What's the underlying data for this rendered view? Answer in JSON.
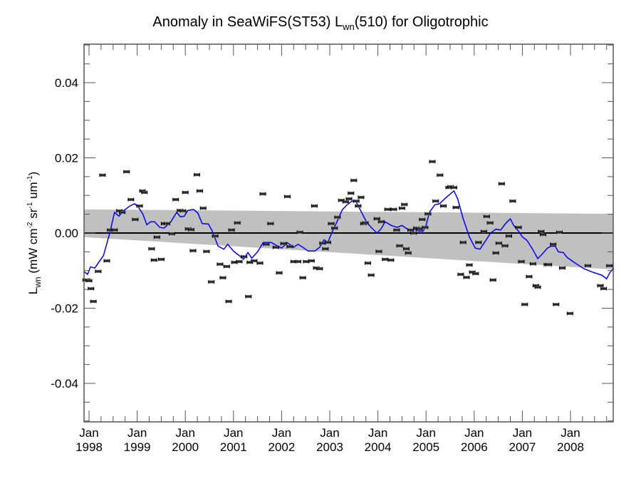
{
  "chart_data": {
    "type": "scatter",
    "title": {
      "prefix": "Anomaly in SeaWiFS(ST53) L",
      "sub": "wn",
      "suffix": "(510) for Oligotrophic"
    },
    "xlabel": "",
    "ylabel": {
      "prefix": "L",
      "sub": "wn",
      "units_parts": [
        " (mW cm",
        "-2",
        " sr",
        "-1",
        " um",
        "-1",
        ")"
      ]
    },
    "xlim": [
      1997.9,
      2008.9
    ],
    "ylim": [
      -0.05,
      0.05
    ],
    "yticks": [
      -0.04,
      -0.02,
      0.0,
      0.02,
      0.04
    ],
    "ytick_labels": [
      "-0.04",
      "-0.02",
      "0.00",
      "0.02",
      "0.04"
    ],
    "yminor_step": 0.005,
    "xticks": [
      1998,
      1999,
      2000,
      2001,
      2002,
      2003,
      2004,
      2005,
      2006,
      2007,
      2008
    ],
    "xtick_labels": [
      [
        "Jan",
        "1998"
      ],
      [
        "Jan",
        "1999"
      ],
      [
        "Jan",
        "2000"
      ],
      [
        "Jan",
        "2001"
      ],
      [
        "Jan",
        "2002"
      ],
      [
        "Jan",
        "2003"
      ],
      [
        "Jan",
        "2004"
      ],
      [
        "Jan",
        "2005"
      ],
      [
        "Jan",
        "2006"
      ],
      [
        "Jan",
        "2007"
      ],
      [
        "Jan",
        "2008"
      ]
    ],
    "xminor_per_major": 4,
    "grid": false,
    "zero_line": 0.0,
    "confidence_band": {
      "start": {
        "x": 1997.9,
        "upper": 0.0063,
        "lower": -0.0011
      },
      "end": {
        "x": 2008.9,
        "upper": 0.0051,
        "lower": -0.0097
      },
      "color": "#c0c0c0"
    },
    "series": [
      {
        "name": "monthly anomaly",
        "type": "scatter-errorbar",
        "color": "#000000",
        "points": [
          [
            1997.93,
            -0.0125
          ],
          [
            1997.96,
            -0.0125
          ],
          [
            1998.0,
            -0.0127
          ],
          [
            1998.04,
            -0.0148
          ],
          [
            1998.09,
            -0.0182
          ],
          [
            1998.19,
            -0.0102
          ],
          [
            1998.28,
            0.0154
          ],
          [
            1998.37,
            -0.0074
          ],
          [
            1998.44,
            0.0008
          ],
          [
            1998.53,
            0.0008
          ],
          [
            1998.63,
            0.0059
          ],
          [
            1998.69,
            0.0055
          ],
          [
            1998.78,
            0.0163
          ],
          [
            1998.87,
            0.0089
          ],
          [
            1998.96,
            0.0036
          ],
          [
            1999.05,
            0.0072
          ],
          [
            1999.11,
            0.0112
          ],
          [
            1999.15,
            0.0108
          ],
          [
            1999.3,
            -0.0042
          ],
          [
            1999.35,
            -0.0072
          ],
          [
            1999.41,
            -0.0011
          ],
          [
            1999.5,
            -0.007
          ],
          [
            1999.56,
            0.0025
          ],
          [
            1999.62,
            0.0025
          ],
          [
            1999.72,
            -0.0002
          ],
          [
            1999.8,
            0.0089
          ],
          [
            1999.89,
            0.006
          ],
          [
            1999.95,
            0.0059
          ],
          [
            2000.0,
            0.0108
          ],
          [
            2000.06,
            0.0011
          ],
          [
            2000.12,
            0.0009
          ],
          [
            2000.16,
            -0.0047
          ],
          [
            2000.24,
            0.0155
          ],
          [
            2000.3,
            0.0112
          ],
          [
            2000.37,
            0.0066
          ],
          [
            2000.44,
            -0.0049
          ],
          [
            2000.54,
            -0.013
          ],
          [
            2000.62,
            -0.0008
          ],
          [
            2000.72,
            -0.0083
          ],
          [
            2000.78,
            -0.0119
          ],
          [
            2000.86,
            -0.0089
          ],
          [
            2000.9,
            -0.0182
          ],
          [
            2000.96,
            0.0008
          ],
          [
            2001.02,
            -0.0078
          ],
          [
            2001.08,
            0.0027
          ],
          [
            2001.12,
            -0.0076
          ],
          [
            2001.22,
            -0.0063
          ],
          [
            2001.31,
            -0.0169
          ],
          [
            2001.34,
            -0.0078
          ],
          [
            2001.43,
            -0.0074
          ],
          [
            2001.55,
            -0.008
          ],
          [
            2001.61,
            0.0104
          ],
          [
            2001.68,
            -0.003
          ],
          [
            2001.77,
            0.0025
          ],
          [
            2001.88,
            -0.0038
          ],
          [
            2001.95,
            -0.0106
          ],
          [
            2002.04,
            -0.0028
          ],
          [
            2002.12,
            0.0097
          ],
          [
            2002.17,
            -0.0036
          ],
          [
            2002.25,
            -0.0076
          ],
          [
            2002.34,
            -0.0076
          ],
          [
            2002.38,
            0.0002
          ],
          [
            2002.44,
            -0.0119
          ],
          [
            2002.51,
            -0.0076
          ],
          [
            2002.62,
            -0.0074
          ],
          [
            2002.68,
            0.0072
          ],
          [
            2002.72,
            -0.0093
          ],
          [
            2002.79,
            -0.0095
          ],
          [
            2002.85,
            -0.0027
          ],
          [
            2002.91,
            -0.0042
          ],
          [
            2002.96,
            -0.0025
          ],
          [
            2003.03,
            0.0025
          ],
          [
            2003.1,
            0.0013
          ],
          [
            2003.16,
            0.0042
          ],
          [
            2003.24,
            0.0087
          ],
          [
            2003.33,
            0.0083
          ],
          [
            2003.4,
            0.0091
          ],
          [
            2003.44,
            0.0106
          ],
          [
            2003.5,
            0.014
          ],
          [
            2003.55,
            0.0085
          ],
          [
            2003.59,
            0.0072
          ],
          [
            2003.65,
            0.0095
          ],
          [
            2003.7,
            0.0025
          ],
          [
            2003.74,
            0.0027
          ],
          [
            2003.79,
            -0.008
          ],
          [
            2003.86,
            -0.0112
          ],
          [
            2003.98,
            0.0038
          ],
          [
            2004.02,
            -0.0049
          ],
          [
            2004.07,
            0.003
          ],
          [
            2004.15,
            -0.007
          ],
          [
            2004.2,
            0.0063
          ],
          [
            2004.27,
            -0.0072
          ],
          [
            2004.33,
            0.0063
          ],
          [
            2004.39,
            0.0008
          ],
          [
            2004.45,
            -0.0034
          ],
          [
            2004.5,
            0.0066
          ],
          [
            2004.55,
            0.0076
          ],
          [
            2004.59,
            -0.0042
          ],
          [
            2004.63,
            -0.0053
          ],
          [
            2004.68,
            0.0008
          ],
          [
            2004.74,
            0.0
          ],
          [
            2004.8,
            0.0013
          ],
          [
            2004.86,
            0.0011
          ],
          [
            2004.92,
            0.0036
          ],
          [
            2004.98,
            0.0015
          ],
          [
            2005.04,
            0.0051
          ],
          [
            2005.13,
            0.019
          ],
          [
            2005.2,
            0.0085
          ],
          [
            2005.29,
            0.0154
          ],
          [
            2005.36,
            0.0072
          ],
          [
            2005.47,
            0.0121
          ],
          [
            2005.51,
            0.0123
          ],
          [
            2005.58,
            0.0121
          ],
          [
            2005.62,
            0.0068
          ],
          [
            2005.72,
            -0.011
          ],
          [
            2005.77,
            -0.0025
          ],
          [
            2005.84,
            -0.0118
          ],
          [
            2005.9,
            -0.0085
          ],
          [
            2005.96,
            -0.0104
          ],
          [
            2006.03,
            -0.0108
          ],
          [
            2006.09,
            -0.0025
          ],
          [
            2006.2,
            0.0004
          ],
          [
            2006.26,
            0.0044
          ],
          [
            2006.33,
            0.0027
          ],
          [
            2006.39,
            -0.0125
          ],
          [
            2006.45,
            -0.0053
          ],
          [
            2006.51,
            -0.0027
          ],
          [
            2006.57,
            0.0131
          ],
          [
            2006.64,
            -0.0034
          ],
          [
            2006.72,
            -0.0008
          ],
          [
            2006.8,
            0.0085
          ],
          [
            2006.92,
            0.0015
          ],
          [
            2006.98,
            -0.0076
          ],
          [
            2007.05,
            -0.019
          ],
          [
            2007.14,
            -0.0116
          ],
          [
            2007.22,
            -0.0082
          ],
          [
            2007.28,
            -0.014
          ],
          [
            2007.32,
            -0.0144
          ],
          [
            2007.39,
            0.0004
          ],
          [
            2007.43,
            -0.0004
          ],
          [
            2007.51,
            -0.0084
          ],
          [
            2007.55,
            -0.0084
          ],
          [
            2007.64,
            -0.003
          ],
          [
            2007.7,
            -0.019
          ],
          [
            2007.77,
            0.0002
          ],
          [
            2007.83,
            -0.0093
          ],
          [
            2007.99,
            -0.0214
          ],
          [
            2008.36,
            -0.0087
          ],
          [
            2008.62,
            -0.014
          ],
          [
            2008.69,
            -0.0148
          ],
          [
            2008.81,
            -0.0087
          ]
        ]
      },
      {
        "name": "running mean",
        "type": "line",
        "color": "#0000ff",
        "points": [
          [
            1997.9,
            -0.0103
          ],
          [
            1997.97,
            -0.011
          ],
          [
            1998.03,
            -0.009
          ],
          [
            1998.12,
            -0.0093
          ],
          [
            1998.3,
            -0.006
          ],
          [
            1998.43,
            0.0
          ],
          [
            1998.53,
            0.0055
          ],
          [
            1998.62,
            0.0045
          ],
          [
            1998.72,
            0.006
          ],
          [
            1998.85,
            0.0072
          ],
          [
            1998.95,
            0.0078
          ],
          [
            1999.03,
            0.0068
          ],
          [
            1999.12,
            0.005
          ],
          [
            1999.2,
            0.0022
          ],
          [
            1999.28,
            0.003
          ],
          [
            1999.36,
            0.003
          ],
          [
            1999.47,
            0.0015
          ],
          [
            1999.56,
            0.0013
          ],
          [
            1999.7,
            0.003
          ],
          [
            1999.82,
            0.0055
          ],
          [
            1999.9,
            0.0043
          ],
          [
            1999.98,
            0.0045
          ],
          [
            2000.05,
            0.006
          ],
          [
            2000.17,
            0.0063
          ],
          [
            2000.26,
            0.0053
          ],
          [
            2000.35,
            0.0025
          ],
          [
            2000.48,
            0.0024
          ],
          [
            2000.56,
            0.0005
          ],
          [
            2000.68,
            -0.0035
          ],
          [
            2000.8,
            -0.0043
          ],
          [
            2000.88,
            -0.003
          ],
          [
            2001.0,
            -0.0048
          ],
          [
            2001.1,
            -0.0058
          ],
          [
            2001.21,
            -0.007
          ],
          [
            2001.3,
            -0.0052
          ],
          [
            2001.38,
            -0.0067
          ],
          [
            2001.5,
            -0.005
          ],
          [
            2001.62,
            -0.0025
          ],
          [
            2001.78,
            -0.0025
          ],
          [
            2001.88,
            -0.0032
          ],
          [
            2002.0,
            -0.004
          ],
          [
            2002.12,
            -0.0026
          ],
          [
            2002.25,
            -0.0038
          ],
          [
            2002.34,
            -0.003
          ],
          [
            2002.44,
            -0.0038
          ],
          [
            2002.55,
            -0.0048
          ],
          [
            2002.69,
            -0.0048
          ],
          [
            2002.79,
            -0.0038
          ],
          [
            2002.88,
            -0.0018
          ],
          [
            2002.96,
            -0.0025
          ],
          [
            2003.04,
            0.0
          ],
          [
            2003.15,
            0.003
          ],
          [
            2003.26,
            0.0062
          ],
          [
            2003.36,
            0.0075
          ],
          [
            2003.46,
            0.0085
          ],
          [
            2003.55,
            0.0082
          ],
          [
            2003.64,
            0.006
          ],
          [
            2003.76,
            0.003
          ],
          [
            2003.86,
            0.0015
          ],
          [
            2003.98,
            0.0
          ],
          [
            2004.06,
            0.001
          ],
          [
            2004.15,
            0.003
          ],
          [
            2004.28,
            0.002
          ],
          [
            2004.4,
            0.0015
          ],
          [
            2004.5,
            0.002
          ],
          [
            2004.58,
            0.0013
          ],
          [
            2004.66,
            0.0008
          ],
          [
            2004.75,
            0.001
          ],
          [
            2004.85,
            0.0005
          ],
          [
            2004.94,
            0.0005
          ],
          [
            2005.0,
            0.002
          ],
          [
            2005.07,
            0.0055
          ],
          [
            2005.18,
            0.0075
          ],
          [
            2005.28,
            0.0078
          ],
          [
            2005.42,
            0.0095
          ],
          [
            2005.58,
            0.0112
          ],
          [
            2005.66,
            0.009
          ],
          [
            2005.77,
            0.0038
          ],
          [
            2005.9,
            -0.001
          ],
          [
            2006.02,
            -0.004
          ],
          [
            2006.12,
            -0.0043
          ],
          [
            2006.24,
            -0.002
          ],
          [
            2006.34,
            0.0
          ],
          [
            2006.45,
            0.001
          ],
          [
            2006.55,
            0.0008
          ],
          [
            2006.65,
            0.0025
          ],
          [
            2006.75,
            0.0038
          ],
          [
            2006.82,
            0.002
          ],
          [
            2006.92,
            0.0005
          ],
          [
            2007.0,
            -0.001
          ],
          [
            2007.1,
            -0.002
          ],
          [
            2007.22,
            -0.0045
          ],
          [
            2007.32,
            -0.0068
          ],
          [
            2007.42,
            -0.0055
          ],
          [
            2007.52,
            -0.004
          ],
          [
            2007.6,
            -0.0035
          ],
          [
            2007.68,
            -0.0035
          ],
          [
            2007.75,
            -0.005
          ],
          [
            2007.85,
            -0.0052
          ],
          [
            2007.93,
            -0.0065
          ],
          [
            2008.1,
            -0.008
          ],
          [
            2008.28,
            -0.0095
          ],
          [
            2008.48,
            -0.0105
          ],
          [
            2008.65,
            -0.0112
          ],
          [
            2008.75,
            -0.0122
          ],
          [
            2008.82,
            -0.0105
          ],
          [
            2008.9,
            -0.0093
          ]
        ]
      }
    ]
  }
}
